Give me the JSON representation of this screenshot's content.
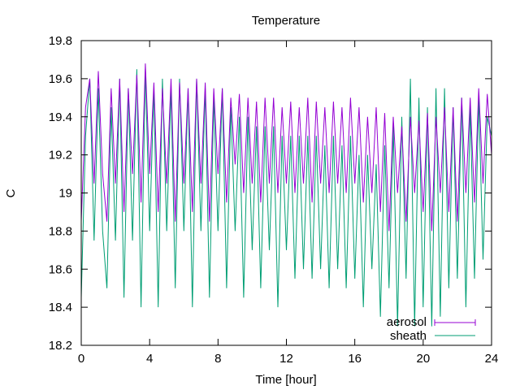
{
  "chart_data": {
    "type": "line",
    "title": "Temperature",
    "xlabel": "Time [hour]",
    "ylabel": "C",
    "xlim": [
      0,
      24
    ],
    "ylim": [
      18.2,
      19.8
    ],
    "x_ticks": [
      0,
      4,
      8,
      12,
      16,
      20,
      24
    ],
    "x_tick_labels": [
      "0",
      "4",
      "8",
      "12",
      "16",
      "20",
      "24"
    ],
    "y_ticks": [
      18.2,
      18.4,
      18.6,
      18.8,
      19.0,
      19.2,
      19.4,
      19.6,
      19.8
    ],
    "y_tick_labels": [
      "18.2",
      "18.4",
      "18.6",
      "18.8",
      "19",
      "19.2",
      "19.4",
      "19.6",
      "19.8"
    ],
    "grid": false,
    "legend_position": "bottom-right",
    "series": [
      {
        "name": "aerosol",
        "color": "#9400d3",
        "x": [
          0.0,
          0.25,
          0.5,
          0.75,
          1.0,
          1.25,
          1.5,
          1.75,
          2.0,
          2.25,
          2.5,
          2.75,
          3.0,
          3.25,
          3.5,
          3.75,
          4.0,
          4.25,
          4.5,
          4.75,
          5.0,
          5.25,
          5.5,
          5.75,
          6.0,
          6.25,
          6.5,
          6.75,
          7.0,
          7.25,
          7.5,
          7.75,
          8.0,
          8.25,
          8.5,
          8.75,
          9.0,
          9.25,
          9.5,
          9.75,
          10.0,
          10.25,
          10.5,
          10.75,
          11.0,
          11.25,
          11.5,
          11.75,
          12.0,
          12.25,
          12.5,
          12.75,
          13.0,
          13.25,
          13.5,
          13.75,
          14.0,
          14.25,
          14.5,
          14.75,
          15.0,
          15.25,
          15.5,
          15.75,
          16.0,
          16.25,
          16.5,
          16.75,
          17.0,
          17.25,
          17.5,
          17.75,
          18.0,
          18.25,
          18.5,
          18.75,
          19.0,
          19.25,
          19.5,
          19.75,
          20.0,
          20.25,
          20.5,
          20.75,
          21.0,
          21.25,
          21.5,
          21.75,
          22.0,
          22.25,
          22.5,
          22.75,
          23.0,
          23.25,
          23.5,
          23.75,
          24.0
        ],
        "y": [
          18.85,
          19.45,
          19.6,
          19.05,
          19.64,
          19.1,
          18.85,
          19.55,
          19.05,
          19.6,
          18.9,
          19.55,
          19.1,
          19.62,
          18.95,
          19.68,
          19.1,
          19.58,
          18.9,
          19.55,
          19.05,
          19.6,
          18.85,
          19.58,
          19.05,
          19.55,
          18.9,
          19.6,
          19.05,
          19.58,
          18.85,
          19.55,
          19.1,
          19.55,
          18.95,
          19.5,
          19.15,
          19.52,
          19.0,
          19.5,
          19.05,
          19.48,
          18.95,
          19.5,
          19.05,
          19.5,
          19.0,
          19.45,
          19.05,
          19.48,
          19.0,
          19.45,
          19.05,
          19.5,
          18.95,
          19.48,
          19.05,
          19.45,
          19.0,
          19.48,
          19.05,
          19.45,
          19.0,
          19.5,
          19.05,
          19.45,
          18.95,
          19.4,
          19.0,
          19.45,
          18.9,
          19.42,
          18.8,
          19.4,
          19.0,
          19.35,
          18.85,
          19.4,
          19.0,
          19.38,
          18.9,
          19.42,
          18.8,
          19.4,
          19.0,
          19.45,
          18.9,
          19.45,
          18.85,
          19.5,
          19.0,
          19.5,
          18.95,
          19.55,
          19.05,
          19.52,
          19.2
        ]
      },
      {
        "name": "sheath",
        "color": "#009e73",
        "x": [
          0.0,
          0.25,
          0.5,
          0.75,
          1.0,
          1.25,
          1.5,
          1.75,
          2.0,
          2.25,
          2.5,
          2.75,
          3.0,
          3.25,
          3.5,
          3.75,
          4.0,
          4.25,
          4.5,
          4.75,
          5.0,
          5.25,
          5.5,
          5.75,
          6.0,
          6.25,
          6.5,
          6.75,
          7.0,
          7.25,
          7.5,
          7.75,
          8.0,
          8.25,
          8.5,
          8.75,
          9.0,
          9.25,
          9.5,
          9.75,
          10.0,
          10.25,
          10.5,
          10.75,
          11.0,
          11.25,
          11.5,
          11.75,
          12.0,
          12.25,
          12.5,
          12.75,
          13.0,
          13.25,
          13.5,
          13.75,
          14.0,
          14.25,
          14.5,
          14.75,
          15.0,
          15.25,
          15.5,
          15.75,
          16.0,
          16.25,
          16.5,
          16.75,
          17.0,
          17.25,
          17.5,
          17.75,
          18.0,
          18.25,
          18.5,
          18.75,
          19.0,
          19.25,
          19.5,
          19.75,
          20.0,
          20.25,
          20.5,
          20.75,
          21.0,
          21.25,
          21.5,
          21.75,
          22.0,
          22.25,
          22.5,
          22.75,
          23.0,
          23.25,
          23.5,
          23.75,
          24.0
        ],
        "y": [
          18.45,
          19.3,
          19.6,
          18.75,
          19.55,
          18.8,
          18.5,
          19.45,
          18.75,
          19.6,
          18.45,
          19.55,
          18.75,
          19.65,
          18.4,
          19.65,
          18.8,
          19.55,
          18.4,
          19.6,
          18.8,
          19.55,
          18.5,
          19.6,
          18.8,
          19.55,
          18.4,
          19.6,
          18.8,
          19.55,
          18.45,
          19.5,
          18.8,
          19.55,
          18.5,
          19.45,
          18.8,
          19.4,
          18.45,
          19.4,
          18.7,
          19.35,
          18.5,
          19.35,
          18.7,
          19.35,
          18.4,
          19.3,
          18.7,
          19.3,
          18.55,
          19.3,
          18.6,
          19.3,
          18.55,
          19.3,
          18.6,
          19.25,
          18.5,
          19.3,
          18.6,
          19.25,
          18.5,
          19.3,
          18.55,
          19.2,
          18.4,
          19.2,
          18.6,
          19.15,
          18.35,
          19.25,
          18.5,
          19.35,
          18.3,
          19.4,
          18.55,
          19.6,
          18.3,
          19.5,
          18.4,
          19.45,
          18.3,
          19.55,
          18.35,
          19.55,
          18.5,
          19.45,
          18.55,
          19.5,
          18.4,
          19.45,
          18.55,
          19.5,
          18.65,
          19.4,
          19.3
        ]
      }
    ]
  }
}
